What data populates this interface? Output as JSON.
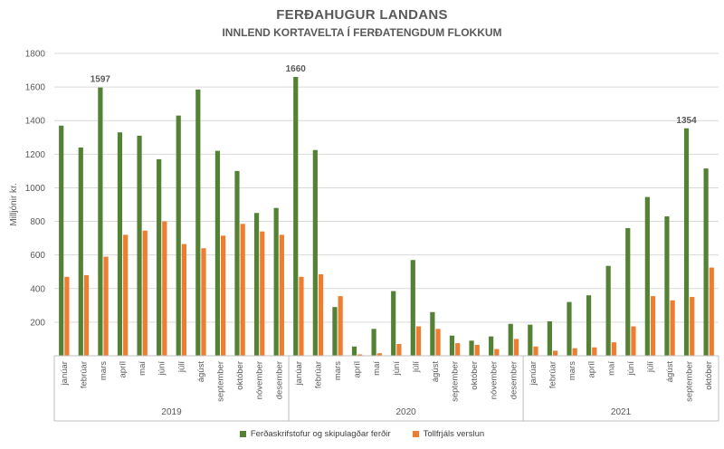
{
  "chart_data": {
    "type": "bar",
    "title": "FERÐAHUGUR LANDANS",
    "subtitle": "INNLEND KORTAVELTA Í FERÐATENGDUM FLOKKUM",
    "ylabel": "Milljónir kr.",
    "ylim": [
      0,
      1800
    ],
    "yticks": [
      0,
      200,
      400,
      600,
      800,
      1000,
      1200,
      1400,
      1600,
      1800
    ],
    "ytick_labels": [
      "",
      "200",
      "400",
      "600",
      "800",
      "1000",
      "1200",
      "1400",
      "1600",
      "1800"
    ],
    "grid": true,
    "legend_position": "bottom",
    "groups": [
      {
        "label": "2019",
        "months": [
          "janúar",
          "febrúar",
          "mars",
          "apríl",
          "maí",
          "júní",
          "júlí",
          "ágúst",
          "september",
          "október",
          "nóvember",
          "desember"
        ]
      },
      {
        "label": "2020",
        "months": [
          "janúar",
          "febrúar",
          "mars",
          "apríl",
          "maí",
          "júní",
          "júlí",
          "ágúst",
          "september",
          "október",
          "nóvember",
          "desember"
        ]
      },
      {
        "label": "2021",
        "months": [
          "janúar",
          "febrúar",
          "mars",
          "apríl",
          "maí",
          "júní",
          "júlí",
          "ágúst",
          "september",
          "október"
        ]
      }
    ],
    "series": [
      {
        "name": "Ferðaskrifstofur og skipulagðar ferðir",
        "color": "#548235",
        "values": [
          1370,
          1240,
          1597,
          1330,
          1310,
          1170,
          1430,
          1585,
          1220,
          1100,
          850,
          880,
          1660,
          1225,
          290,
          55,
          160,
          385,
          570,
          260,
          120,
          90,
          115,
          190,
          185,
          205,
          320,
          360,
          535,
          760,
          945,
          830,
          1354,
          1115
        ]
      },
      {
        "name": "Tollfrjáls verslun",
        "color": "#ED7D31",
        "values": [
          470,
          480,
          590,
          720,
          745,
          800,
          665,
          640,
          715,
          785,
          740,
          720,
          470,
          485,
          355,
          8,
          15,
          70,
          175,
          160,
          75,
          65,
          40,
          100,
          55,
          30,
          45,
          50,
          80,
          175,
          355,
          330,
          350,
          525
        ]
      }
    ],
    "data_labels": [
      {
        "series": 0,
        "index": 2,
        "text": "1597"
      },
      {
        "series": 0,
        "index": 12,
        "text": "1660"
      },
      {
        "series": 0,
        "index": 32,
        "text": "1354"
      }
    ]
  }
}
